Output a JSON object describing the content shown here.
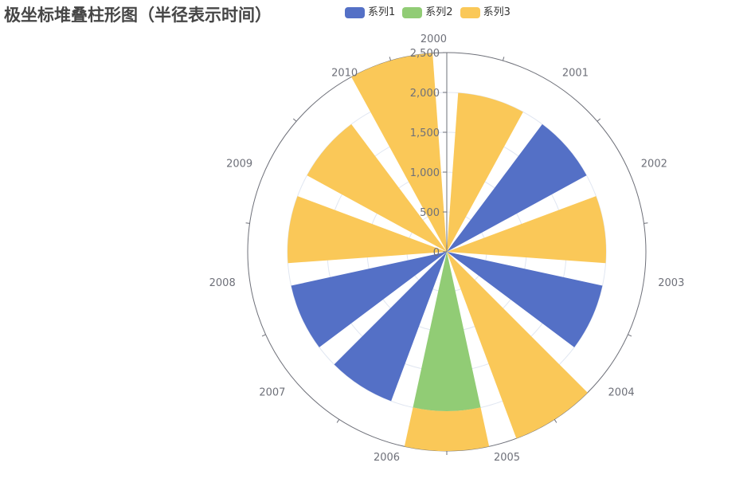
{
  "title": "极坐标堆叠柱形图（半径表示时间）",
  "legend": [
    {
      "name": "系列1",
      "color": "#5470c6"
    },
    {
      "name": "系列2",
      "color": "#91cc75"
    },
    {
      "name": "系列3",
      "color": "#fac858"
    }
  ],
  "chart_data": {
    "type": "bar",
    "coordinate": "polar",
    "stacked": true,
    "angle_axis": {
      "categories": [
        "2000",
        "2001",
        "2002",
        "2003",
        "2004",
        "2005",
        "2006",
        "2007",
        "2008",
        "2009",
        "2010"
      ],
      "start_angle_deg": 90,
      "clockwise": true
    },
    "radius_axis": {
      "ticks": [
        0,
        500,
        1000,
        1500,
        2000,
        2500
      ],
      "tick_labels": [
        "0",
        "500",
        "1,000",
        "1,500",
        "2,000",
        "2,500"
      ],
      "range": [
        0,
        2500
      ]
    },
    "categories": [
      "2000",
      "2001",
      "2002",
      "2003",
      "2004",
      "2005",
      "2006",
      "2007",
      "2008",
      "2009",
      "2010"
    ],
    "series": [
      {
        "name": "系列1",
        "color": "#5470c6",
        "values": [
          0,
          2000,
          0,
          2000,
          0,
          0,
          2000,
          2000,
          0,
          0,
          0
        ]
      },
      {
        "name": "系列2",
        "color": "#91cc75",
        "values": [
          0,
          0,
          0,
          0,
          0,
          2000,
          0,
          0,
          0,
          0,
          0
        ]
      },
      {
        "name": "系列3",
        "color": "#fac858",
        "values": [
          2000,
          0,
          2000,
          0,
          2500,
          500,
          0,
          0,
          2000,
          2000,
          2500
        ]
      }
    ],
    "legend_position": "top-center"
  }
}
